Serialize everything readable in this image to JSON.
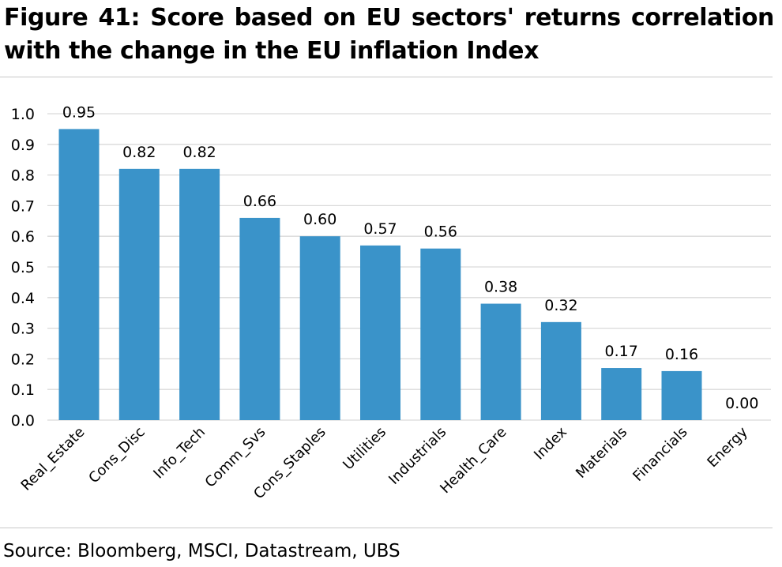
{
  "figure": {
    "title": "Figure 41: Score based on EU sectors' returns correlation with the change in the EU inflation Index",
    "source": "Source: Bloomberg, MSCI, Datastream, UBS"
  },
  "chart_data": {
    "type": "bar",
    "categories": [
      "Real_Estate",
      "Cons_Disc",
      "Info_Tech",
      "Comm_Svs",
      "Cons_Staples",
      "Utilities",
      "Industrials",
      "Health_Care",
      "Index",
      "Materials",
      "Financials",
      "Energy"
    ],
    "values": [
      0.95,
      0.82,
      0.82,
      0.66,
      0.6,
      0.57,
      0.56,
      0.38,
      0.32,
      0.17,
      0.16,
      0.0
    ],
    "data_labels": [
      "0.95",
      "0.82",
      "0.82",
      "0.66",
      "0.60",
      "0.57",
      "0.56",
      "0.38",
      "0.32",
      "0.17",
      "0.16",
      "0.00"
    ],
    "y_ticks": [
      "0.0",
      "0.1",
      "0.2",
      "0.3",
      "0.4",
      "0.5",
      "0.6",
      "0.7",
      "0.8",
      "0.9",
      "1.0"
    ],
    "ylim": [
      0,
      1.0
    ],
    "grid": true,
    "legend": "none",
    "bar_color": "#3a93c9",
    "grid_color": "#d9d9d9"
  }
}
